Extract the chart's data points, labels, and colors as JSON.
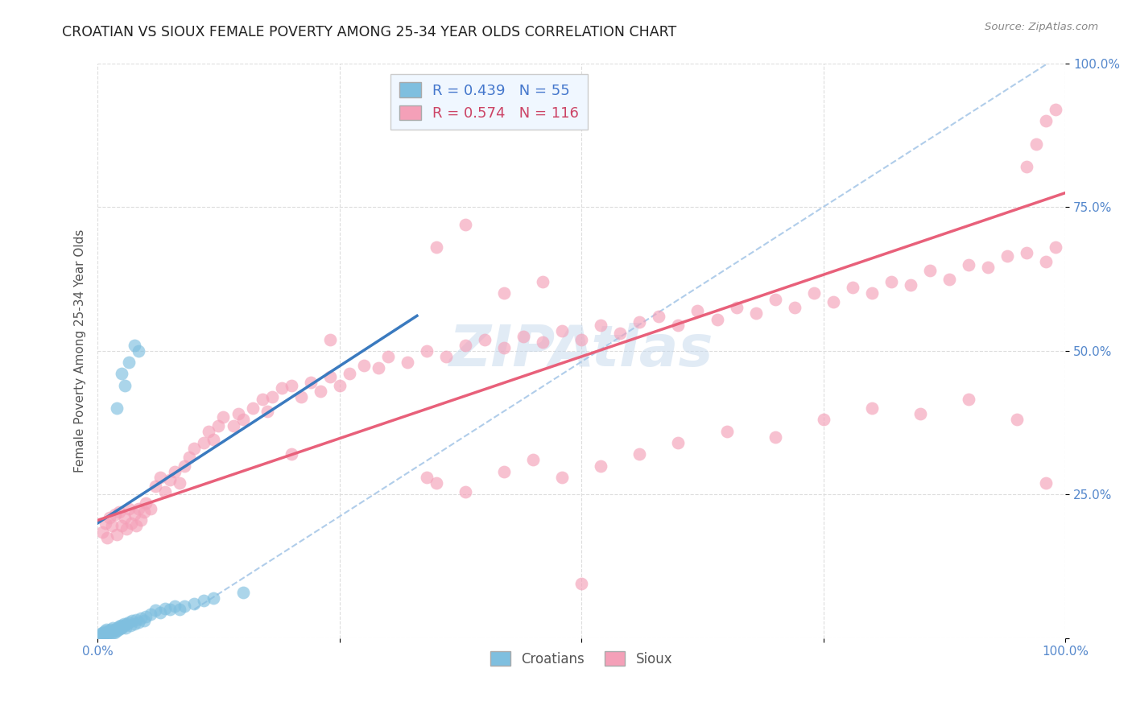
{
  "title": "CROATIAN VS SIOUX FEMALE POVERTY AMONG 25-34 YEAR OLDS CORRELATION CHART",
  "source": "Source: ZipAtlas.com",
  "ylabel": "Female Poverty Among 25-34 Year Olds",
  "watermark": "ZIPAtlas",
  "croatian_color": "#7fbfdf",
  "sioux_color": "#f4a0b8",
  "croatian_line_color": "#3a7abf",
  "sioux_line_color": "#e8607a",
  "dash_line_color": "#a8c8e8",
  "background_color": "#ffffff",
  "grid_color": "#dddddd",
  "tick_color": "#5588cc",
  "legend_box_color": "#f0f7ff",
  "legend_border_color": "#cccccc",
  "croatian_points": [
    [
      0.003,
      0.005
    ],
    [
      0.004,
      0.008
    ],
    [
      0.005,
      0.01
    ],
    [
      0.006,
      0.007
    ],
    [
      0.007,
      0.012
    ],
    [
      0.008,
      0.009
    ],
    [
      0.009,
      0.015
    ],
    [
      0.01,
      0.008
    ],
    [
      0.011,
      0.012
    ],
    [
      0.012,
      0.01
    ],
    [
      0.013,
      0.015
    ],
    [
      0.014,
      0.008
    ],
    [
      0.015,
      0.012
    ],
    [
      0.016,
      0.018
    ],
    [
      0.017,
      0.01
    ],
    [
      0.018,
      0.015
    ],
    [
      0.019,
      0.012
    ],
    [
      0.02,
      0.018
    ],
    [
      0.021,
      0.014
    ],
    [
      0.022,
      0.02
    ],
    [
      0.023,
      0.016
    ],
    [
      0.024,
      0.022
    ],
    [
      0.025,
      0.018
    ],
    [
      0.026,
      0.02
    ],
    [
      0.027,
      0.025
    ],
    [
      0.028,
      0.022
    ],
    [
      0.029,
      0.018
    ],
    [
      0.03,
      0.025
    ],
    [
      0.032,
      0.028
    ],
    [
      0.034,
      0.022
    ],
    [
      0.036,
      0.03
    ],
    [
      0.038,
      0.025
    ],
    [
      0.04,
      0.032
    ],
    [
      0.042,
      0.028
    ],
    [
      0.045,
      0.035
    ],
    [
      0.048,
      0.03
    ],
    [
      0.05,
      0.038
    ],
    [
      0.055,
      0.042
    ],
    [
      0.06,
      0.048
    ],
    [
      0.065,
      0.045
    ],
    [
      0.07,
      0.052
    ],
    [
      0.075,
      0.05
    ],
    [
      0.08,
      0.055
    ],
    [
      0.085,
      0.05
    ],
    [
      0.09,
      0.055
    ],
    [
      0.1,
      0.06
    ],
    [
      0.11,
      0.065
    ],
    [
      0.12,
      0.07
    ],
    [
      0.02,
      0.4
    ],
    [
      0.025,
      0.46
    ],
    [
      0.028,
      0.44
    ],
    [
      0.032,
      0.48
    ],
    [
      0.038,
      0.51
    ],
    [
      0.042,
      0.5
    ],
    [
      0.15,
      0.08
    ]
  ],
  "sioux_points": [
    [
      0.005,
      0.185
    ],
    [
      0.008,
      0.2
    ],
    [
      0.01,
      0.175
    ],
    [
      0.012,
      0.21
    ],
    [
      0.015,
      0.195
    ],
    [
      0.018,
      0.215
    ],
    [
      0.02,
      0.18
    ],
    [
      0.022,
      0.22
    ],
    [
      0.025,
      0.195
    ],
    [
      0.028,
      0.21
    ],
    [
      0.03,
      0.19
    ],
    [
      0.032,
      0.225
    ],
    [
      0.035,
      0.2
    ],
    [
      0.038,
      0.215
    ],
    [
      0.04,
      0.195
    ],
    [
      0.042,
      0.225
    ],
    [
      0.045,
      0.205
    ],
    [
      0.048,
      0.22
    ],
    [
      0.05,
      0.235
    ],
    [
      0.055,
      0.225
    ],
    [
      0.06,
      0.265
    ],
    [
      0.065,
      0.28
    ],
    [
      0.07,
      0.255
    ],
    [
      0.075,
      0.275
    ],
    [
      0.08,
      0.29
    ],
    [
      0.085,
      0.27
    ],
    [
      0.09,
      0.3
    ],
    [
      0.095,
      0.315
    ],
    [
      0.1,
      0.33
    ],
    [
      0.11,
      0.34
    ],
    [
      0.115,
      0.36
    ],
    [
      0.12,
      0.345
    ],
    [
      0.125,
      0.37
    ],
    [
      0.13,
      0.385
    ],
    [
      0.14,
      0.37
    ],
    [
      0.145,
      0.39
    ],
    [
      0.15,
      0.38
    ],
    [
      0.16,
      0.4
    ],
    [
      0.17,
      0.415
    ],
    [
      0.175,
      0.395
    ],
    [
      0.18,
      0.42
    ],
    [
      0.19,
      0.435
    ],
    [
      0.2,
      0.44
    ],
    [
      0.21,
      0.42
    ],
    [
      0.22,
      0.445
    ],
    [
      0.23,
      0.43
    ],
    [
      0.24,
      0.455
    ],
    [
      0.25,
      0.44
    ],
    [
      0.26,
      0.46
    ],
    [
      0.275,
      0.475
    ],
    [
      0.29,
      0.47
    ],
    [
      0.3,
      0.49
    ],
    [
      0.32,
      0.48
    ],
    [
      0.34,
      0.5
    ],
    [
      0.36,
      0.49
    ],
    [
      0.38,
      0.51
    ],
    [
      0.4,
      0.52
    ],
    [
      0.42,
      0.505
    ],
    [
      0.44,
      0.525
    ],
    [
      0.46,
      0.515
    ],
    [
      0.48,
      0.535
    ],
    [
      0.5,
      0.52
    ],
    [
      0.52,
      0.545
    ],
    [
      0.54,
      0.53
    ],
    [
      0.56,
      0.55
    ],
    [
      0.58,
      0.56
    ],
    [
      0.6,
      0.545
    ],
    [
      0.62,
      0.57
    ],
    [
      0.64,
      0.555
    ],
    [
      0.66,
      0.575
    ],
    [
      0.68,
      0.565
    ],
    [
      0.7,
      0.59
    ],
    [
      0.72,
      0.575
    ],
    [
      0.74,
      0.6
    ],
    [
      0.76,
      0.585
    ],
    [
      0.78,
      0.61
    ],
    [
      0.8,
      0.6
    ],
    [
      0.82,
      0.62
    ],
    [
      0.84,
      0.615
    ],
    [
      0.86,
      0.64
    ],
    [
      0.88,
      0.625
    ],
    [
      0.9,
      0.65
    ],
    [
      0.92,
      0.645
    ],
    [
      0.94,
      0.665
    ],
    [
      0.96,
      0.67
    ],
    [
      0.98,
      0.655
    ],
    [
      0.99,
      0.68
    ],
    [
      0.35,
      0.27
    ],
    [
      0.38,
      0.255
    ],
    [
      0.42,
      0.29
    ],
    [
      0.45,
      0.31
    ],
    [
      0.48,
      0.28
    ],
    [
      0.52,
      0.3
    ],
    [
      0.56,
      0.32
    ],
    [
      0.6,
      0.34
    ],
    [
      0.65,
      0.36
    ],
    [
      0.7,
      0.35
    ],
    [
      0.75,
      0.38
    ],
    [
      0.8,
      0.4
    ],
    [
      0.85,
      0.39
    ],
    [
      0.9,
      0.415
    ],
    [
      0.95,
      0.38
    ],
    [
      0.98,
      0.27
    ],
    [
      0.42,
      0.6
    ],
    [
      0.46,
      0.62
    ],
    [
      0.34,
      0.28
    ],
    [
      0.2,
      0.32
    ],
    [
      0.24,
      0.52
    ],
    [
      0.35,
      0.68
    ],
    [
      0.38,
      0.72
    ],
    [
      0.5,
      0.095
    ],
    [
      0.96,
      0.82
    ],
    [
      0.97,
      0.86
    ],
    [
      0.98,
      0.9
    ],
    [
      0.99,
      0.92
    ]
  ]
}
